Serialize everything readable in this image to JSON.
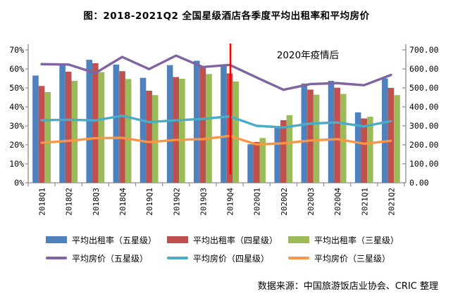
{
  "page": {
    "title": "图：2018-2021Q2 全国星级酒店各季度平均出租率和平均房价",
    "source_note": "数据来源：中国旅游饭店业协会、CRIC 整理"
  },
  "chart_data": {
    "type": "combo-bar-line",
    "title": "图：2018-2021Q2 全国星级酒店各季度平均出租率和平均房价",
    "categories": [
      "2018Q1",
      "2018Q2",
      "2018Q3",
      "2018Q4",
      "2019Q1",
      "2019Q2",
      "2019Q3",
      "2019Q4",
      "2020Q1",
      "2020Q2",
      "2020Q3",
      "2020Q4",
      "2021Q1",
      "2021Q2"
    ],
    "bar_series": [
      {
        "name": "平均出租率（五星级）",
        "axis": "left",
        "color": "#4F81BD",
        "values": [
          56.5,
          62.5,
          64.8,
          62.3,
          55.3,
          62.0,
          64.3,
          62.3,
          20.3,
          29.7,
          52.3,
          53.7,
          37.1,
          55.0
        ]
      },
      {
        "name": "平均出租率（四星级）",
        "axis": "left",
        "color": "#C0504D",
        "values": [
          51.0,
          58.5,
          63.0,
          58.8,
          48.5,
          55.7,
          61.3,
          57.6,
          21.5,
          33.0,
          49.1,
          50.1,
          33.9,
          50.0
        ]
      },
      {
        "name": "平均出租率（三星级）",
        "axis": "left",
        "color": "#9BBB59",
        "values": [
          47.8,
          53.7,
          58.3,
          54.7,
          46.2,
          54.8,
          57.3,
          53.4,
          23.6,
          35.6,
          46.4,
          46.8,
          34.8,
          46.2
        ]
      }
    ],
    "line_series": [
      {
        "name": "平均房价（五星级）",
        "axis": "right",
        "color": "#8064A2",
        "values": [
          625,
          623,
          578,
          663,
          599,
          670,
          610,
          621,
          555,
          490,
          520,
          525,
          514,
          568
        ]
      },
      {
        "name": "平均房价（四星级）",
        "axis": "right",
        "color": "#4BACC6",
        "values": [
          330,
          332,
          329,
          353,
          320,
          329,
          337,
          350,
          300,
          292,
          312,
          318,
          297,
          325
        ]
      },
      {
        "name": "平均房价（三星级）",
        "axis": "right",
        "color": "#F79646",
        "values": [
          211,
          221,
          235,
          237,
          214,
          226,
          230,
          247,
          202,
          208,
          223,
          230,
          206,
          221
        ]
      }
    ],
    "left_axis": {
      "unit": "%",
      "min": 0,
      "max": 70,
      "ticks": [
        "0%",
        "10%",
        "20%",
        "30%",
        "40%",
        "50%",
        "60%",
        "70%"
      ]
    },
    "right_axis": {
      "unit": "yuan",
      "min": 0,
      "max": 700,
      "ticks": [
        "0.00",
        "100.00",
        "200.00",
        "300.00",
        "400.00",
        "500.00",
        "600.00",
        "700.00"
      ]
    },
    "annotation": {
      "text": "2020年疫情后"
    },
    "event_line": {
      "category": "2019Q4",
      "category_index": 7,
      "color": "#FF0000"
    },
    "legend_position": "bottom",
    "grid": false,
    "axis_color": "#8C8C8C"
  }
}
